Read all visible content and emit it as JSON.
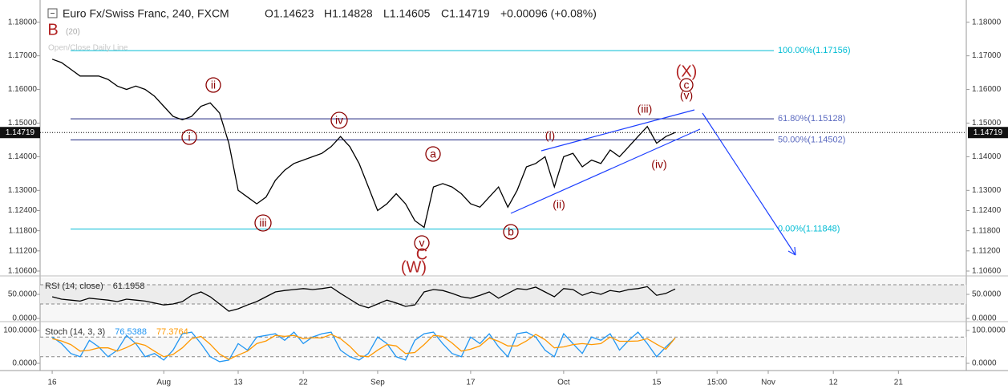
{
  "header": {
    "symbol": "Euro Fx/Swiss Franc, 240, FXCM",
    "open": "O1.14623",
    "high": "H1.14828",
    "low": "L1.14605",
    "close": "C1.14719",
    "change": "+0.00096 (+0.08%)",
    "indicator": "Open/Close Daily Line",
    "indicator_param": "(20)"
  },
  "waves": [
    "B",
    "i",
    "ii",
    "iii",
    "iv",
    "v",
    "C",
    "(W)",
    "a",
    "b",
    "(i)",
    "(ii)",
    "(iii)",
    "(iv)",
    "(X)",
    "c",
    "(v)"
  ],
  "chart_data": [
    {
      "type": "line",
      "x": [
        0,
        1,
        2,
        3,
        4,
        5,
        6,
        7,
        8,
        9,
        10,
        11,
        12,
        13,
        14,
        15,
        16,
        17,
        18,
        19,
        20,
        21,
        22,
        23,
        24,
        25,
        26,
        27,
        28,
        29,
        30,
        31,
        32,
        33,
        34,
        35,
        36,
        37,
        38,
        39,
        40,
        41,
        42,
        43,
        44,
        45,
        46,
        47,
        48,
        49,
        50,
        51,
        52,
        53,
        54,
        55,
        56,
        57,
        58,
        59,
        60,
        61,
        62,
        63,
        64,
        65,
        66,
        67
      ],
      "series": [
        {
          "color": "#000000",
          "values": [
            1.169,
            1.168,
            1.166,
            1.164,
            1.164,
            1.164,
            1.163,
            1.161,
            1.16,
            1.161,
            1.16,
            1.158,
            1.155,
            1.152,
            1.151,
            1.152,
            1.155,
            1.156,
            1.153,
            1.144,
            1.13,
            1.128,
            1.126,
            1.128,
            1.133,
            1.136,
            1.138,
            1.139,
            1.14,
            1.141,
            1.143,
            1.146,
            1.143,
            1.138,
            1.131,
            1.124,
            1.126,
            1.129,
            1.126,
            1.121,
            1.119,
            1.131,
            1.132,
            1.131,
            1.129,
            1.126,
            1.125,
            1.128,
            1.131,
            1.125,
            1.13,
            1.137,
            1.138,
            1.14,
            1.131,
            1.14,
            1.141,
            1.137,
            1.139,
            1.138,
            1.142,
            1.14,
            1.143,
            1.146,
            1.149,
            1.144,
            1.146,
            1.1472
          ]
        }
      ],
      "xlim": [
        -1.3,
        98.3
      ],
      "ylim": [
        1.1048,
        1.1866
      ],
      "yticks": [
        {
          "value": 1.18,
          "label": "1.18000"
        },
        {
          "value": 1.17,
          "label": "1.17000"
        },
        {
          "value": 1.16,
          "label": "1.16000"
        },
        {
          "value": 1.15,
          "label": "1.15000"
        },
        {
          "value": 1.14,
          "label": "1.14000"
        },
        {
          "value": 1.13,
          "label": "1.13000"
        },
        {
          "value": 1.124,
          "label": "1.12400"
        },
        {
          "value": 1.118,
          "label": "1.11800"
        },
        {
          "value": 1.112,
          "label": "1.11200"
        },
        {
          "value": 1.106,
          "label": "1.10600"
        }
      ],
      "levels": [
        {
          "value": 1.17156,
          "label": "100.00%(1.17156)",
          "color": "#00bcd4"
        },
        {
          "value": 1.15128,
          "label": "61.80%(1.15128)",
          "color": "#1a237e",
          "label_color": "#5c6bc0"
        },
        {
          "value": 1.14502,
          "label": "50.00%(1.14502)",
          "color": "#1a237e",
          "label_color": "#5c6bc0"
        },
        {
          "value": 1.11848,
          "label": "0.00%(1.11848)",
          "color": "#00bcd4"
        }
      ],
      "last": 1.14719
    },
    {
      "type": "line",
      "title": "RSI (14, close)",
      "x": [
        0,
        1,
        2,
        3,
        4,
        5,
        6,
        7,
        8,
        9,
        10,
        11,
        12,
        13,
        14,
        15,
        16,
        17,
        18,
        19,
        20,
        21,
        22,
        23,
        24,
        25,
        26,
        27,
        28,
        29,
        30,
        31,
        32,
        33,
        34,
        35,
        36,
        37,
        38,
        39,
        40,
        41,
        42,
        43,
        44,
        45,
        46,
        47,
        48,
        49,
        50,
        51,
        52,
        53,
        54,
        55,
        56,
        57,
        58,
        59,
        60,
        61,
        62,
        63,
        64,
        65,
        66,
        67
      ],
      "series": [
        {
          "color": "#000000",
          "values": [
            45,
            40,
            38,
            36,
            42,
            40,
            38,
            35,
            40,
            38,
            36,
            32,
            28,
            30,
            35,
            48,
            55,
            45,
            30,
            15,
            20,
            28,
            35,
            45,
            55,
            58,
            60,
            62,
            60,
            62,
            65,
            52,
            40,
            28,
            22,
            30,
            38,
            32,
            25,
            28,
            55,
            60,
            58,
            52,
            45,
            42,
            48,
            55,
            42,
            52,
            62,
            60,
            65,
            55,
            45,
            62,
            60,
            48,
            55,
            50,
            58,
            55,
            60,
            62,
            66,
            48,
            52,
            61.1958
          ]
        }
      ],
      "xlim": [
        -1.3,
        98.3
      ],
      "ylim": [
        -5,
        85
      ],
      "yticks": [
        {
          "value": 0,
          "label": "0.0000"
        },
        {
          "value": 50,
          "label": "50.0000"
        }
      ],
      "bands": [
        30,
        70
      ]
    },
    {
      "type": "line",
      "title": "Stoch (14, 3, 3)",
      "x": [
        0,
        1,
        2,
        3,
        4,
        5,
        6,
        7,
        8,
        9,
        10,
        11,
        12,
        13,
        14,
        15,
        16,
        17,
        18,
        19,
        20,
        21,
        22,
        23,
        24,
        25,
        26,
        27,
        28,
        29,
        30,
        31,
        32,
        33,
        34,
        35,
        36,
        37,
        38,
        39,
        40,
        41,
        42,
        43,
        44,
        45,
        46,
        47,
        48,
        49,
        50,
        51,
        52,
        53,
        54,
        55,
        56,
        57,
        58,
        59,
        60,
        61,
        62,
        63,
        64,
        65,
        66,
        67
      ],
      "series": [
        {
          "color": "#2196f3",
          "values": [
            80,
            60,
            30,
            20,
            70,
            50,
            20,
            40,
            85,
            60,
            20,
            30,
            10,
            40,
            90,
            95,
            60,
            20,
            5,
            10,
            60,
            40,
            80,
            85,
            90,
            70,
            95,
            60,
            80,
            90,
            95,
            40,
            20,
            10,
            30,
            80,
            60,
            20,
            10,
            70,
            90,
            95,
            60,
            30,
            20,
            80,
            60,
            90,
            50,
            20,
            90,
            95,
            80,
            40,
            20,
            90,
            60,
            30,
            80,
            70,
            90,
            40,
            70,
            95,
            60,
            20,
            50,
            76.5388
          ]
        },
        {
          "color": "#ff9800",
          "values": [
            75,
            68,
            57,
            37,
            40,
            47,
            47,
            37,
            48,
            62,
            55,
            37,
            20,
            27,
            47,
            75,
            82,
            58,
            28,
            12,
            25,
            37,
            60,
            68,
            85,
            82,
            85,
            75,
            78,
            77,
            88,
            75,
            52,
            23,
            20,
            40,
            57,
            53,
            30,
            33,
            57,
            85,
            82,
            62,
            37,
            43,
            53,
            77,
            67,
            53,
            53,
            68,
            88,
            72,
            47,
            50,
            57,
            60,
            57,
            60,
            80,
            67,
            67,
            68,
            75,
            58,
            43,
            77.3764
          ]
        }
      ],
      "xlim": [
        -1.3,
        98.3
      ],
      "ylim": [
        -22,
        122
      ],
      "yticks": [
        {
          "value": 0,
          "label": "0.0000"
        },
        {
          "value": 100,
          "label": "100.0000"
        }
      ],
      "bands": [
        20,
        80
      ],
      "xticks": [
        {
          "value": 0,
          "label": "16"
        },
        {
          "value": 12,
          "label": "Aug"
        },
        {
          "value": 20,
          "label": "13"
        },
        {
          "value": 27,
          "label": "22"
        },
        {
          "value": 35,
          "label": "Sep"
        },
        {
          "value": 45,
          "label": "17"
        },
        {
          "value": 55,
          "label": "Oct"
        },
        {
          "value": 65,
          "label": "15"
        },
        {
          "value": 71.5,
          "label": "15:00"
        },
        {
          "value": 77,
          "label": "Nov"
        },
        {
          "value": 84,
          "label": "12"
        },
        {
          "value": 91,
          "label": "21"
        }
      ]
    }
  ]
}
